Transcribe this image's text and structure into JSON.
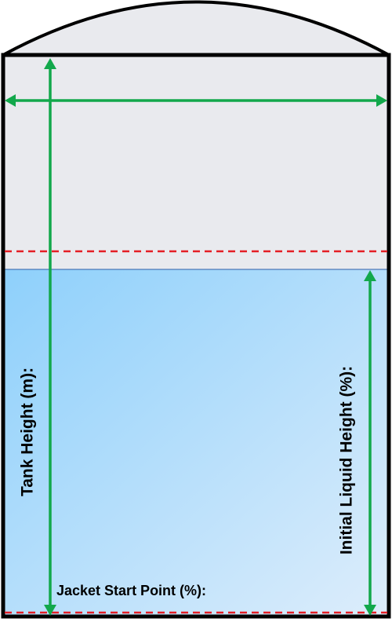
{
  "labels": {
    "tank_height": "Tank Height (m):",
    "initial_liquid_height": "Initial Liquid Height (%):",
    "jacket_start_point": "Jacket Start Point (%):"
  },
  "colors": {
    "tank_outline": "#000000",
    "tank_fill": "#e9eaee",
    "liquid_gradient_start": "#8ed0fb",
    "liquid_gradient_end": "#ddedfb",
    "dimension_arrow": "#12a84b",
    "marker_line": "#e41e25"
  }
}
